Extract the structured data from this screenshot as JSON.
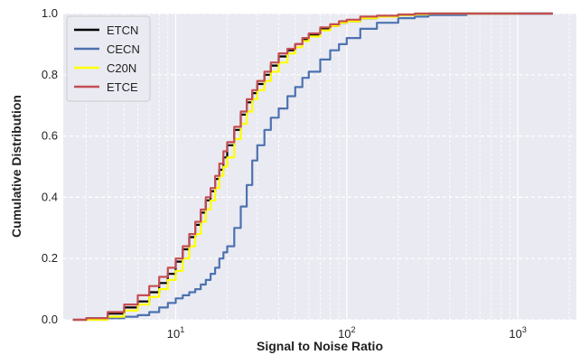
{
  "chart_data": {
    "type": "line",
    "title": "",
    "xlabel": "Signal to Noise Ratio",
    "ylabel": "Cumulative Distribution",
    "xscale": "log",
    "xlim": [
      2.2,
      2200
    ],
    "ylim": [
      0.0,
      1.0
    ],
    "x_ticks": [
      {
        "value": 10,
        "base": "10",
        "exp": "1"
      },
      {
        "value": 100,
        "base": "10",
        "exp": "2"
      },
      {
        "value": 1000,
        "base": "10",
        "exp": "3"
      }
    ],
    "y_ticks": [
      {
        "value": 0.0,
        "label": "0.0"
      },
      {
        "value": 0.2,
        "label": "0.2"
      },
      {
        "value": 0.4,
        "label": "0.4"
      },
      {
        "value": 0.6,
        "label": "0.6"
      },
      {
        "value": 0.8,
        "label": "0.8"
      },
      {
        "value": 1.0,
        "label": "1.0"
      }
    ],
    "grid": true,
    "legend_position": "top-left",
    "background": "#eaeaf2",
    "series": [
      {
        "name": "ETCN",
        "color": "#000000",
        "x": [
          2.5,
          3,
          4,
          5,
          6,
          7,
          8,
          9,
          10,
          11,
          12,
          13,
          14,
          15,
          16,
          17,
          18,
          19,
          20,
          22,
          24,
          26,
          28,
          30,
          33,
          36,
          40,
          45,
          50,
          55,
          60,
          70,
          80,
          90,
          100,
          120,
          150,
          200,
          250,
          300,
          500,
          1000,
          1600
        ],
        "y": [
          0.0,
          0.005,
          0.02,
          0.04,
          0.06,
          0.09,
          0.12,
          0.15,
          0.19,
          0.23,
          0.27,
          0.31,
          0.35,
          0.39,
          0.42,
          0.46,
          0.49,
          0.53,
          0.57,
          0.62,
          0.67,
          0.71,
          0.74,
          0.77,
          0.8,
          0.83,
          0.86,
          0.88,
          0.9,
          0.915,
          0.93,
          0.95,
          0.96,
          0.97,
          0.975,
          0.985,
          0.99,
          0.995,
          0.998,
          1.0,
          1.0,
          1.0,
          1.0
        ]
      },
      {
        "name": "CECN",
        "color": "#4c72b0",
        "x": [
          3,
          4,
          5,
          6,
          7,
          8,
          9,
          10,
          11,
          12,
          13,
          14,
          15,
          16,
          17,
          18,
          19,
          20,
          22,
          24,
          26,
          28,
          30,
          33,
          36,
          40,
          45,
          50,
          55,
          60,
          70,
          80,
          90,
          100,
          120,
          150,
          200,
          250,
          300,
          500,
          1000,
          1600
        ],
        "y": [
          0.0,
          0.005,
          0.01,
          0.015,
          0.025,
          0.04,
          0.055,
          0.07,
          0.08,
          0.09,
          0.1,
          0.115,
          0.13,
          0.15,
          0.17,
          0.2,
          0.22,
          0.24,
          0.3,
          0.37,
          0.44,
          0.52,
          0.57,
          0.62,
          0.66,
          0.69,
          0.73,
          0.76,
          0.79,
          0.81,
          0.85,
          0.88,
          0.9,
          0.92,
          0.95,
          0.97,
          0.985,
          0.99,
          0.995,
          1.0,
          1.0,
          1.0
        ]
      },
      {
        "name": "C20N",
        "color": "#ffff00",
        "x": [
          3,
          4,
          5,
          6,
          7,
          8,
          9,
          10,
          11,
          12,
          13,
          14,
          15,
          16,
          17,
          18,
          19,
          20,
          22,
          24,
          26,
          28,
          30,
          33,
          36,
          40,
          45,
          50,
          55,
          60,
          70,
          80,
          90,
          100,
          120,
          150,
          200,
          250,
          300,
          500,
          1000
        ],
        "y": [
          0.0,
          0.01,
          0.03,
          0.05,
          0.075,
          0.1,
          0.13,
          0.16,
          0.2,
          0.24,
          0.28,
          0.32,
          0.36,
          0.39,
          0.43,
          0.47,
          0.5,
          0.53,
          0.59,
          0.64,
          0.68,
          0.72,
          0.75,
          0.78,
          0.81,
          0.84,
          0.87,
          0.89,
          0.91,
          0.925,
          0.945,
          0.96,
          0.97,
          0.975,
          0.985,
          0.99,
          0.995,
          0.998,
          1.0,
          1.0,
          1.0
        ]
      },
      {
        "name": "ETCE",
        "color": "#c44e52",
        "x": [
          2.5,
          3,
          4,
          5,
          6,
          7,
          8,
          9,
          10,
          11,
          12,
          13,
          14,
          15,
          16,
          17,
          18,
          19,
          20,
          22,
          24,
          26,
          28,
          30,
          33,
          36,
          40,
          45,
          50,
          55,
          60,
          70,
          80,
          90,
          100,
          120,
          150,
          200,
          250,
          300,
          500,
          1000,
          1600
        ],
        "y": [
          0.0,
          0.005,
          0.025,
          0.05,
          0.08,
          0.11,
          0.14,
          0.17,
          0.2,
          0.24,
          0.28,
          0.32,
          0.36,
          0.4,
          0.43,
          0.47,
          0.51,
          0.55,
          0.58,
          0.63,
          0.68,
          0.72,
          0.75,
          0.78,
          0.81,
          0.84,
          0.87,
          0.885,
          0.9,
          0.92,
          0.935,
          0.955,
          0.965,
          0.975,
          0.98,
          0.99,
          0.993,
          0.997,
          1.0,
          1.0,
          1.0,
          1.0,
          1.0
        ]
      }
    ]
  }
}
